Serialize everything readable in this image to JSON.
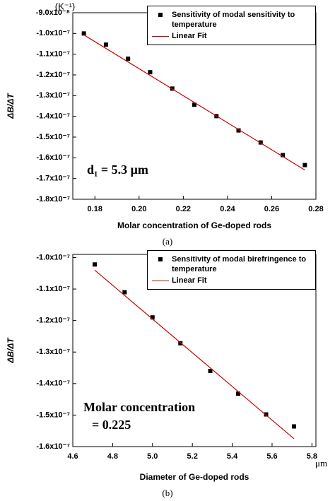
{
  "chart_data": [
    {
      "type": "scatter",
      "ylabel": "ΔB/ΔT",
      "y_unit": "(K⁻¹)",
      "xlabel": "Molar concentration of Ge-doped rods",
      "annotation": [
        "d₁ = 5.3 μm"
      ],
      "caption": "(a)",
      "xlim": [
        0.17,
        0.28
      ],
      "xticks": [
        0.18,
        {
          "value": 0.2,
          "label": "0.20"
        },
        0.22,
        0.24,
        0.26,
        0.28
      ],
      "ylim": [
        -1.8e-07,
        -9e-08
      ],
      "yticks": [
        {
          "value": -9e-08,
          "label": "-9.0x10⁻⁸"
        },
        {
          "value": -1e-07,
          "label": "-1.0x10⁻⁷"
        },
        {
          "value": -1.1e-07,
          "label": "-1.1x10⁻⁷"
        },
        {
          "value": -1.2e-07,
          "label": "-1.2x10⁻⁷"
        },
        {
          "value": -1.3e-07,
          "label": "-1.3x10⁻⁷"
        },
        {
          "value": -1.4e-07,
          "label": "-1.4x10⁻⁷"
        },
        {
          "value": -1.5e-07,
          "label": "-1.5x10⁻⁷"
        },
        {
          "value": -1.6e-07,
          "label": "-1.6x10⁻⁷"
        },
        {
          "value": -1.7e-07,
          "label": "-1.7x10⁻⁷"
        },
        {
          "value": -1.8e-07,
          "label": "-1.8x10⁻⁷"
        }
      ],
      "series": [
        {
          "name": "Sensitivity of modal sensitivity to temperature",
          "color": "#000000",
          "mode": "marker",
          "x": [
            0.175,
            0.185,
            0.195,
            0.205,
            0.215,
            0.225,
            0.235,
            0.245,
            0.255,
            0.265,
            0.275
          ],
          "values": [
            -1e-07,
            -1.054e-07,
            -1.122e-07,
            -1.187e-07,
            -1.266e-07,
            -1.344e-07,
            -1.399e-07,
            -1.468e-07,
            -1.526e-07,
            -1.587e-07,
            -1.635e-07
          ]
        },
        {
          "name": "Linear Fit",
          "color": "#cc0000",
          "mode": "line",
          "x": [
            0.175,
            0.275
          ],
          "values": [
            -1.007e-07,
            -1.659e-07
          ]
        }
      ]
    },
    {
      "type": "scatter",
      "ylabel": "ΔB/ΔT",
      "xlabel": "Diameter of Ge-doped rods",
      "x_unit": "μm",
      "annotation": [
        "Molar concentration",
        "= 0.225"
      ],
      "caption": "(b)",
      "xlim": [
        4.6,
        5.82
      ],
      "xticks": [
        4.6,
        4.8,
        {
          "value": 5.0,
          "label": "5.0"
        },
        5.2,
        5.4,
        5.6,
        5.8
      ],
      "ylim": [
        -1.6e-07,
        -9.9e-08
      ],
      "yticks": [
        {
          "value": -1e-07,
          "label": "-1.0x10⁻⁷"
        },
        {
          "value": -1.1e-07,
          "label": "-1.1x10⁻⁷"
        },
        {
          "value": -1.2e-07,
          "label": "-1.2x10⁻⁷"
        },
        {
          "value": -1.3e-07,
          "label": "-1.3x10⁻⁷"
        },
        {
          "value": -1.4e-07,
          "label": "-1.4x10⁻⁷"
        },
        {
          "value": -1.5e-07,
          "label": "-1.5x10⁻⁷"
        },
        {
          "value": -1.6e-07,
          "label": "-1.6x10⁻⁷"
        }
      ],
      "series": [
        {
          "name": "Sensitivity of modal birefringence to temperature",
          "color": "#000000",
          "mode": "marker",
          "x": [
            4.71,
            4.86,
            5.0,
            5.14,
            5.29,
            5.43,
            5.57,
            5.71
          ],
          "values": [
            -1.022e-07,
            -1.11e-07,
            -1.19e-07,
            -1.272e-07,
            -1.36e-07,
            -1.432e-07,
            -1.498e-07,
            -1.536e-07
          ]
        },
        {
          "name": "Linear Fit",
          "color": "#cc0000",
          "mode": "line",
          "x": [
            4.71,
            5.71
          ],
          "values": [
            -1.04e-07,
            -1.575e-07
          ]
        }
      ]
    }
  ]
}
